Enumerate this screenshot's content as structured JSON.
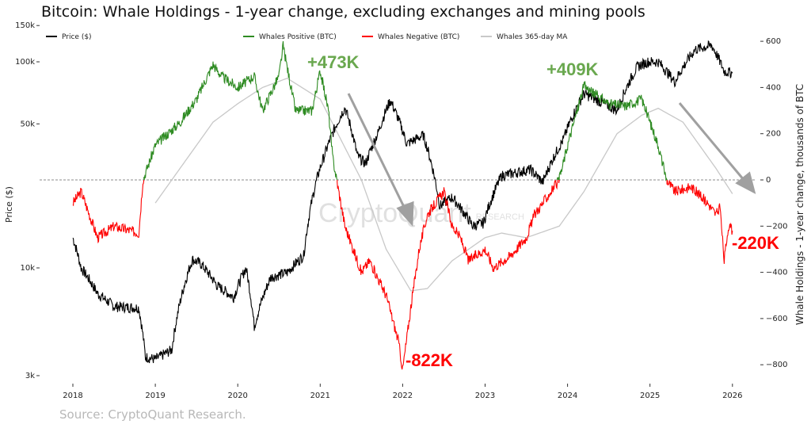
{
  "chart_data": {
    "type": "line",
    "title": "Bitcoin: Whale Holdings - 1-year change, excluding exchanges and mining pools",
    "source": "Source: CryptoQuant Research.",
    "watermark": {
      "brand": "CryptoQuant",
      "sub": "RESEARCH"
    },
    "xlabel": "",
    "ylabel_left": "Price ($)",
    "ylabel_right": "Whale Holdings - 1-year change, thousands of BTC",
    "x_ticks": [
      "2018",
      "2019",
      "2020",
      "2021",
      "2022",
      "2023",
      "2024",
      "2025",
      "2026"
    ],
    "y_left_scale": "log",
    "y_left_ticks": [
      {
        "v": 150000,
        "label": "150k"
      },
      {
        "v": 100000,
        "label": "100k"
      },
      {
        "v": 50000,
        "label": "50k"
      },
      {
        "v": 10000,
        "label": "10k"
      },
      {
        "v": 3000,
        "label": "3k"
      }
    ],
    "y_right_ticks": [
      600,
      400,
      200,
      0,
      -200,
      -400,
      -600,
      -800
    ],
    "y_right_range": [
      -850,
      650
    ],
    "legend": {
      "placement": "top",
      "entries": [
        {
          "label": "Price ($)",
          "color": "#000000"
        },
        {
          "label": "Whales Positive (BTC)",
          "color": "#2e8b22"
        },
        {
          "label": "Whales Negative (BTC)",
          "color": "#ff0000"
        },
        {
          "label": "Whales 365-day MA",
          "color": "#c8c8c8"
        }
      ]
    },
    "annotations": [
      {
        "text": "+473K",
        "x": 2021.0,
        "y": 473,
        "color": "#6aa84f"
      },
      {
        "text": "+409K",
        "x": 2024.0,
        "y": 409,
        "color": "#6aa84f"
      },
      {
        "text": "-822K",
        "x": 2022.0,
        "y": -822,
        "color": "#ff0000"
      },
      {
        "text": "-220K",
        "x": 2026.0,
        "y": -220,
        "color": "#ff0000"
      }
    ],
    "price_series": [
      [
        2018.0,
        14000
      ],
      [
        2018.1,
        10000
      ],
      [
        2018.3,
        7500
      ],
      [
        2018.5,
        6500
      ],
      [
        2018.8,
        6400
      ],
      [
        2018.88,
        3700
      ],
      [
        2019.0,
        3600
      ],
      [
        2019.2,
        4000
      ],
      [
        2019.45,
        11000
      ],
      [
        2019.55,
        10500
      ],
      [
        2019.75,
        8200
      ],
      [
        2019.95,
        7200
      ],
      [
        2020.1,
        10000
      ],
      [
        2020.2,
        5200
      ],
      [
        2020.4,
        9000
      ],
      [
        2020.6,
        9500
      ],
      [
        2020.8,
        11500
      ],
      [
        2020.97,
        28000
      ],
      [
        2021.05,
        35000
      ],
      [
        2021.3,
        60000
      ],
      [
        2021.45,
        35000
      ],
      [
        2021.55,
        32000
      ],
      [
        2021.7,
        45000
      ],
      [
        2021.85,
        65000
      ],
      [
        2022.05,
        40000
      ],
      [
        2022.25,
        44000
      ],
      [
        2022.45,
        20000
      ],
      [
        2022.6,
        22000
      ],
      [
        2022.85,
        16000
      ],
      [
        2022.98,
        16500
      ],
      [
        2023.2,
        28000
      ],
      [
        2023.55,
        30000
      ],
      [
        2023.7,
        26000
      ],
      [
        2023.95,
        42000
      ],
      [
        2024.2,
        70000
      ],
      [
        2024.6,
        58000
      ],
      [
        2024.85,
        95000
      ],
      [
        2024.98,
        100000
      ],
      [
        2025.1,
        100000
      ],
      [
        2025.3,
        80000
      ],
      [
        2025.55,
        115000
      ],
      [
        2025.75,
        120000
      ],
      [
        2025.9,
        90000
      ],
      [
        2026.0,
        88000
      ]
    ],
    "whales_series": [
      [
        2018.0,
        -100
      ],
      [
        2018.1,
        -50
      ],
      [
        2018.3,
        -250
      ],
      [
        2018.5,
        -200
      ],
      [
        2018.8,
        -230
      ],
      [
        2018.85,
        0
      ],
      [
        2019.0,
        150
      ],
      [
        2019.3,
        250
      ],
      [
        2019.5,
        350
      ],
      [
        2019.7,
        500
      ],
      [
        2019.8,
        450
      ],
      [
        2020.0,
        400
      ],
      [
        2020.2,
        450
      ],
      [
        2020.3,
        300
      ],
      [
        2020.5,
        450
      ],
      [
        2020.55,
        580
      ],
      [
        2020.7,
        300
      ],
      [
        2020.9,
        300
      ],
      [
        2021.0,
        473
      ],
      [
        2021.1,
        300
      ],
      [
        2021.15,
        100
      ],
      [
        2021.2,
        0
      ],
      [
        2021.3,
        -200
      ],
      [
        2021.5,
        -400
      ],
      [
        2021.6,
        -350
      ],
      [
        2021.8,
        -500
      ],
      [
        2021.95,
        -700
      ],
      [
        2022.0,
        -822
      ],
      [
        2022.1,
        -550
      ],
      [
        2022.2,
        -300
      ],
      [
        2022.3,
        -150
      ],
      [
        2022.5,
        -50
      ],
      [
        2022.6,
        -200
      ],
      [
        2022.7,
        -250
      ],
      [
        2022.8,
        -350
      ],
      [
        2023.0,
        -300
      ],
      [
        2023.1,
        -380
      ],
      [
        2023.3,
        -330
      ],
      [
        2023.5,
        -250
      ],
      [
        2023.6,
        -150
      ],
      [
        2023.8,
        -50
      ],
      [
        2023.9,
        0
      ],
      [
        2024.0,
        150
      ],
      [
        2024.2,
        409
      ],
      [
        2024.3,
        380
      ],
      [
        2024.5,
        330
      ],
      [
        2024.7,
        320
      ],
      [
        2024.9,
        350
      ],
      [
        2025.0,
        250
      ],
      [
        2025.1,
        150
      ],
      [
        2025.2,
        0
      ],
      [
        2025.3,
        -50
      ],
      [
        2025.5,
        -30
      ],
      [
        2025.7,
        -100
      ],
      [
        2025.8,
        -150
      ],
      [
        2025.85,
        -120
      ],
      [
        2025.9,
        -350
      ],
      [
        2025.95,
        -200
      ],
      [
        2026.0,
        -220
      ]
    ],
    "ma_series": [
      [
        2019.0,
        -100
      ],
      [
        2019.3,
        50
      ],
      [
        2019.7,
        250
      ],
      [
        2020.0,
        330
      ],
      [
        2020.3,
        400
      ],
      [
        2020.6,
        440
      ],
      [
        2021.0,
        350
      ],
      [
        2021.5,
        0
      ],
      [
        2021.8,
        -300
      ],
      [
        2022.1,
        -480
      ],
      [
        2022.3,
        -470
      ],
      [
        2022.6,
        -350
      ],
      [
        2023.0,
        -250
      ],
      [
        2023.2,
        -230
      ],
      [
        2023.5,
        -250
      ],
      [
        2023.9,
        -200
      ],
      [
        2024.2,
        -50
      ],
      [
        2024.6,
        200
      ],
      [
        2024.9,
        280
      ],
      [
        2025.1,
        310
      ],
      [
        2025.4,
        250
      ],
      [
        2025.8,
        50
      ],
      [
        2026.0,
        -60
      ]
    ]
  }
}
